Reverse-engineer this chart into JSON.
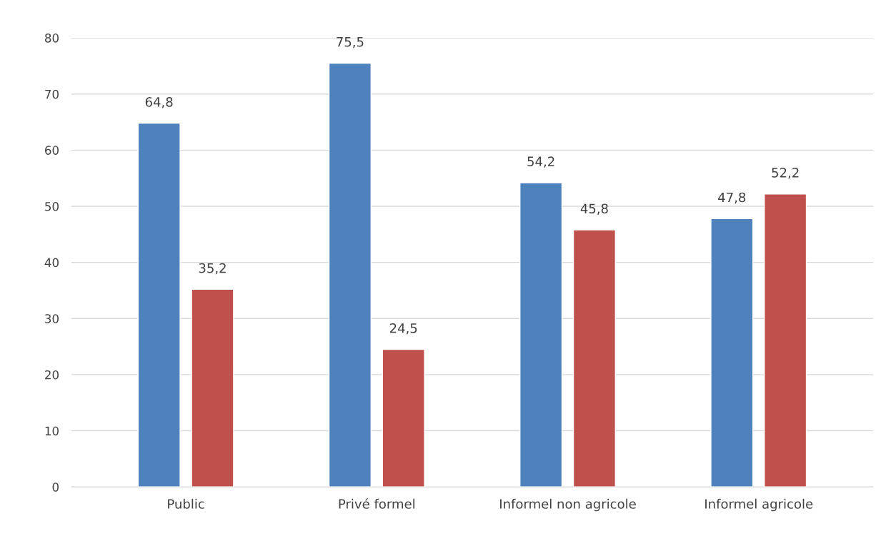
{
  "chart_data": {
    "type": "bar",
    "categories": [
      "Public",
      "Privé formel",
      "Informel non agricole",
      "Informel agricole"
    ],
    "series": [
      {
        "color": "#4f81bd",
        "values": [
          64.8,
          75.5,
          54.2,
          47.8
        ],
        "value_labels": [
          "64,8",
          "75,5",
          "54,2",
          "47,8"
        ]
      },
      {
        "color": "#c0504d",
        "values": [
          35.2,
          24.5,
          45.8,
          52.2
        ],
        "value_labels": [
          "35,2",
          "24,5",
          "45,8",
          "52,2"
        ]
      }
    ],
    "ylim": [
      0,
      80
    ],
    "yticks": [
      0,
      10,
      20,
      30,
      40,
      50,
      60,
      70,
      80
    ],
    "grid": "y",
    "legend": false
  }
}
